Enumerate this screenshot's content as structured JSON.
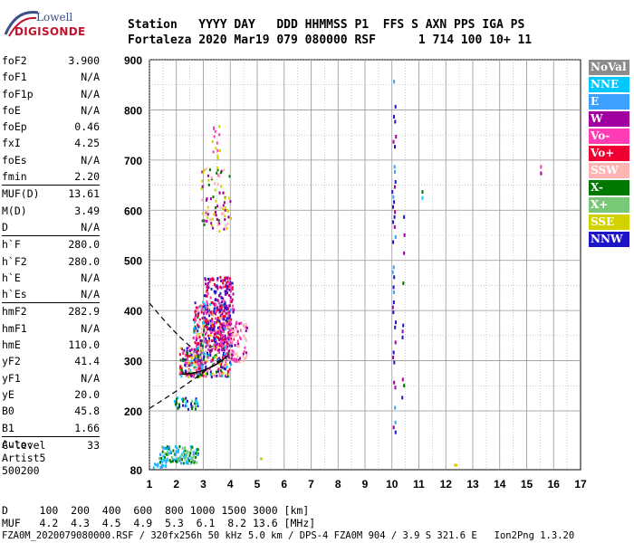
{
  "logo": {
    "brand_top": "Lowell",
    "brand_bottom": "DIGISONDE"
  },
  "header": {
    "row1": "Station   YYYY DAY   DDD HHMMSS P1  FFS S AXN PPS IGA PS",
    "row2": "Fortaleza 2020 Mar19 079 080000 RSF      1 714 100 10+ 11"
  },
  "params": [
    {
      "name": "foF2",
      "value": "3.900"
    },
    {
      "name": "foF1",
      "value": "N/A"
    },
    {
      "name": "foF1p",
      "value": "N/A"
    },
    {
      "name": "foE",
      "value": "N/A"
    },
    {
      "name": "foEp",
      "value": "0.46"
    },
    {
      "name": "fxI",
      "value": "4.25"
    },
    {
      "name": "foEs",
      "value": "N/A"
    },
    {
      "name": "fmin",
      "value": "2.20"
    },
    {
      "name": "MUF(D)",
      "value": "13.61"
    },
    {
      "name": "M(D)",
      "value": "3.49"
    },
    {
      "name": "D",
      "value": "N/A"
    },
    {
      "name": "h`F",
      "value": "280.0"
    },
    {
      "name": "h`F2",
      "value": "280.0"
    },
    {
      "name": "h`E",
      "value": "N/A"
    },
    {
      "name": "h`Es",
      "value": "N/A"
    },
    {
      "name": "hmF2",
      "value": "282.9"
    },
    {
      "name": "hmF1",
      "value": "N/A"
    },
    {
      "name": "hmE",
      "value": "110.0"
    },
    {
      "name": "yF2",
      "value": "41.4"
    },
    {
      "name": "yF1",
      "value": "N/A"
    },
    {
      "name": "yE",
      "value": "20.0"
    },
    {
      "name": "B0",
      "value": "45.8"
    },
    {
      "name": "B1",
      "value": "1.66"
    },
    {
      "name": "C-level",
      "value": "33"
    }
  ],
  "auto": {
    "line1": "Auto:",
    "line2": "Artist5",
    "line3": "500200"
  },
  "legend": [
    {
      "label": "NoVal",
      "color": "#8c8c8c"
    },
    {
      "label": "NNE",
      "color": "#00c8ff"
    },
    {
      "label": "E",
      "color": "#3ca0ff"
    },
    {
      "label": "W",
      "color": "#a0009f"
    },
    {
      "label": "Vo-",
      "color": "#ff3cb4"
    },
    {
      "label": "Vo+",
      "color": "#f00032"
    },
    {
      "label": "SSW",
      "color": "#ffb4b4"
    },
    {
      "label": "X-",
      "color": "#007800"
    },
    {
      "label": "X+",
      "color": "#78c878"
    },
    {
      "label": "SSE",
      "color": "#d2d200"
    },
    {
      "label": "NNW",
      "color": "#1e14c8"
    }
  ],
  "bottom": {
    "d_row": "D     100  200  400  600  800 1000 1500 3000 [km]",
    "muf_row": "MUF   4.2  4.3  4.5  4.9  5.3  6.1  8.2 13.6 [MHz]",
    "footer": "FZA0M_2020079080000.RSF / 320fx256h 50 kHz 5.0 km / DPS-4 FZA0M 904 / 3.9 S 321.6 E   Ion2Png 1.3.20"
  },
  "chart_data": {
    "type": "scatter",
    "x_ticks": [
      "1",
      "2",
      "3",
      "4",
      "5",
      "6",
      "7",
      "8",
      "9",
      "10",
      "11",
      "12",
      "13",
      "14",
      "15",
      "16",
      "17"
    ],
    "y_ticks": [
      "900",
      "800",
      "700",
      "600",
      "500",
      "400",
      "300",
      "200",
      "80"
    ],
    "xlim": [
      1,
      17
    ],
    "ylim": [
      80,
      900
    ],
    "grid": true,
    "legend_placement": "right"
  }
}
